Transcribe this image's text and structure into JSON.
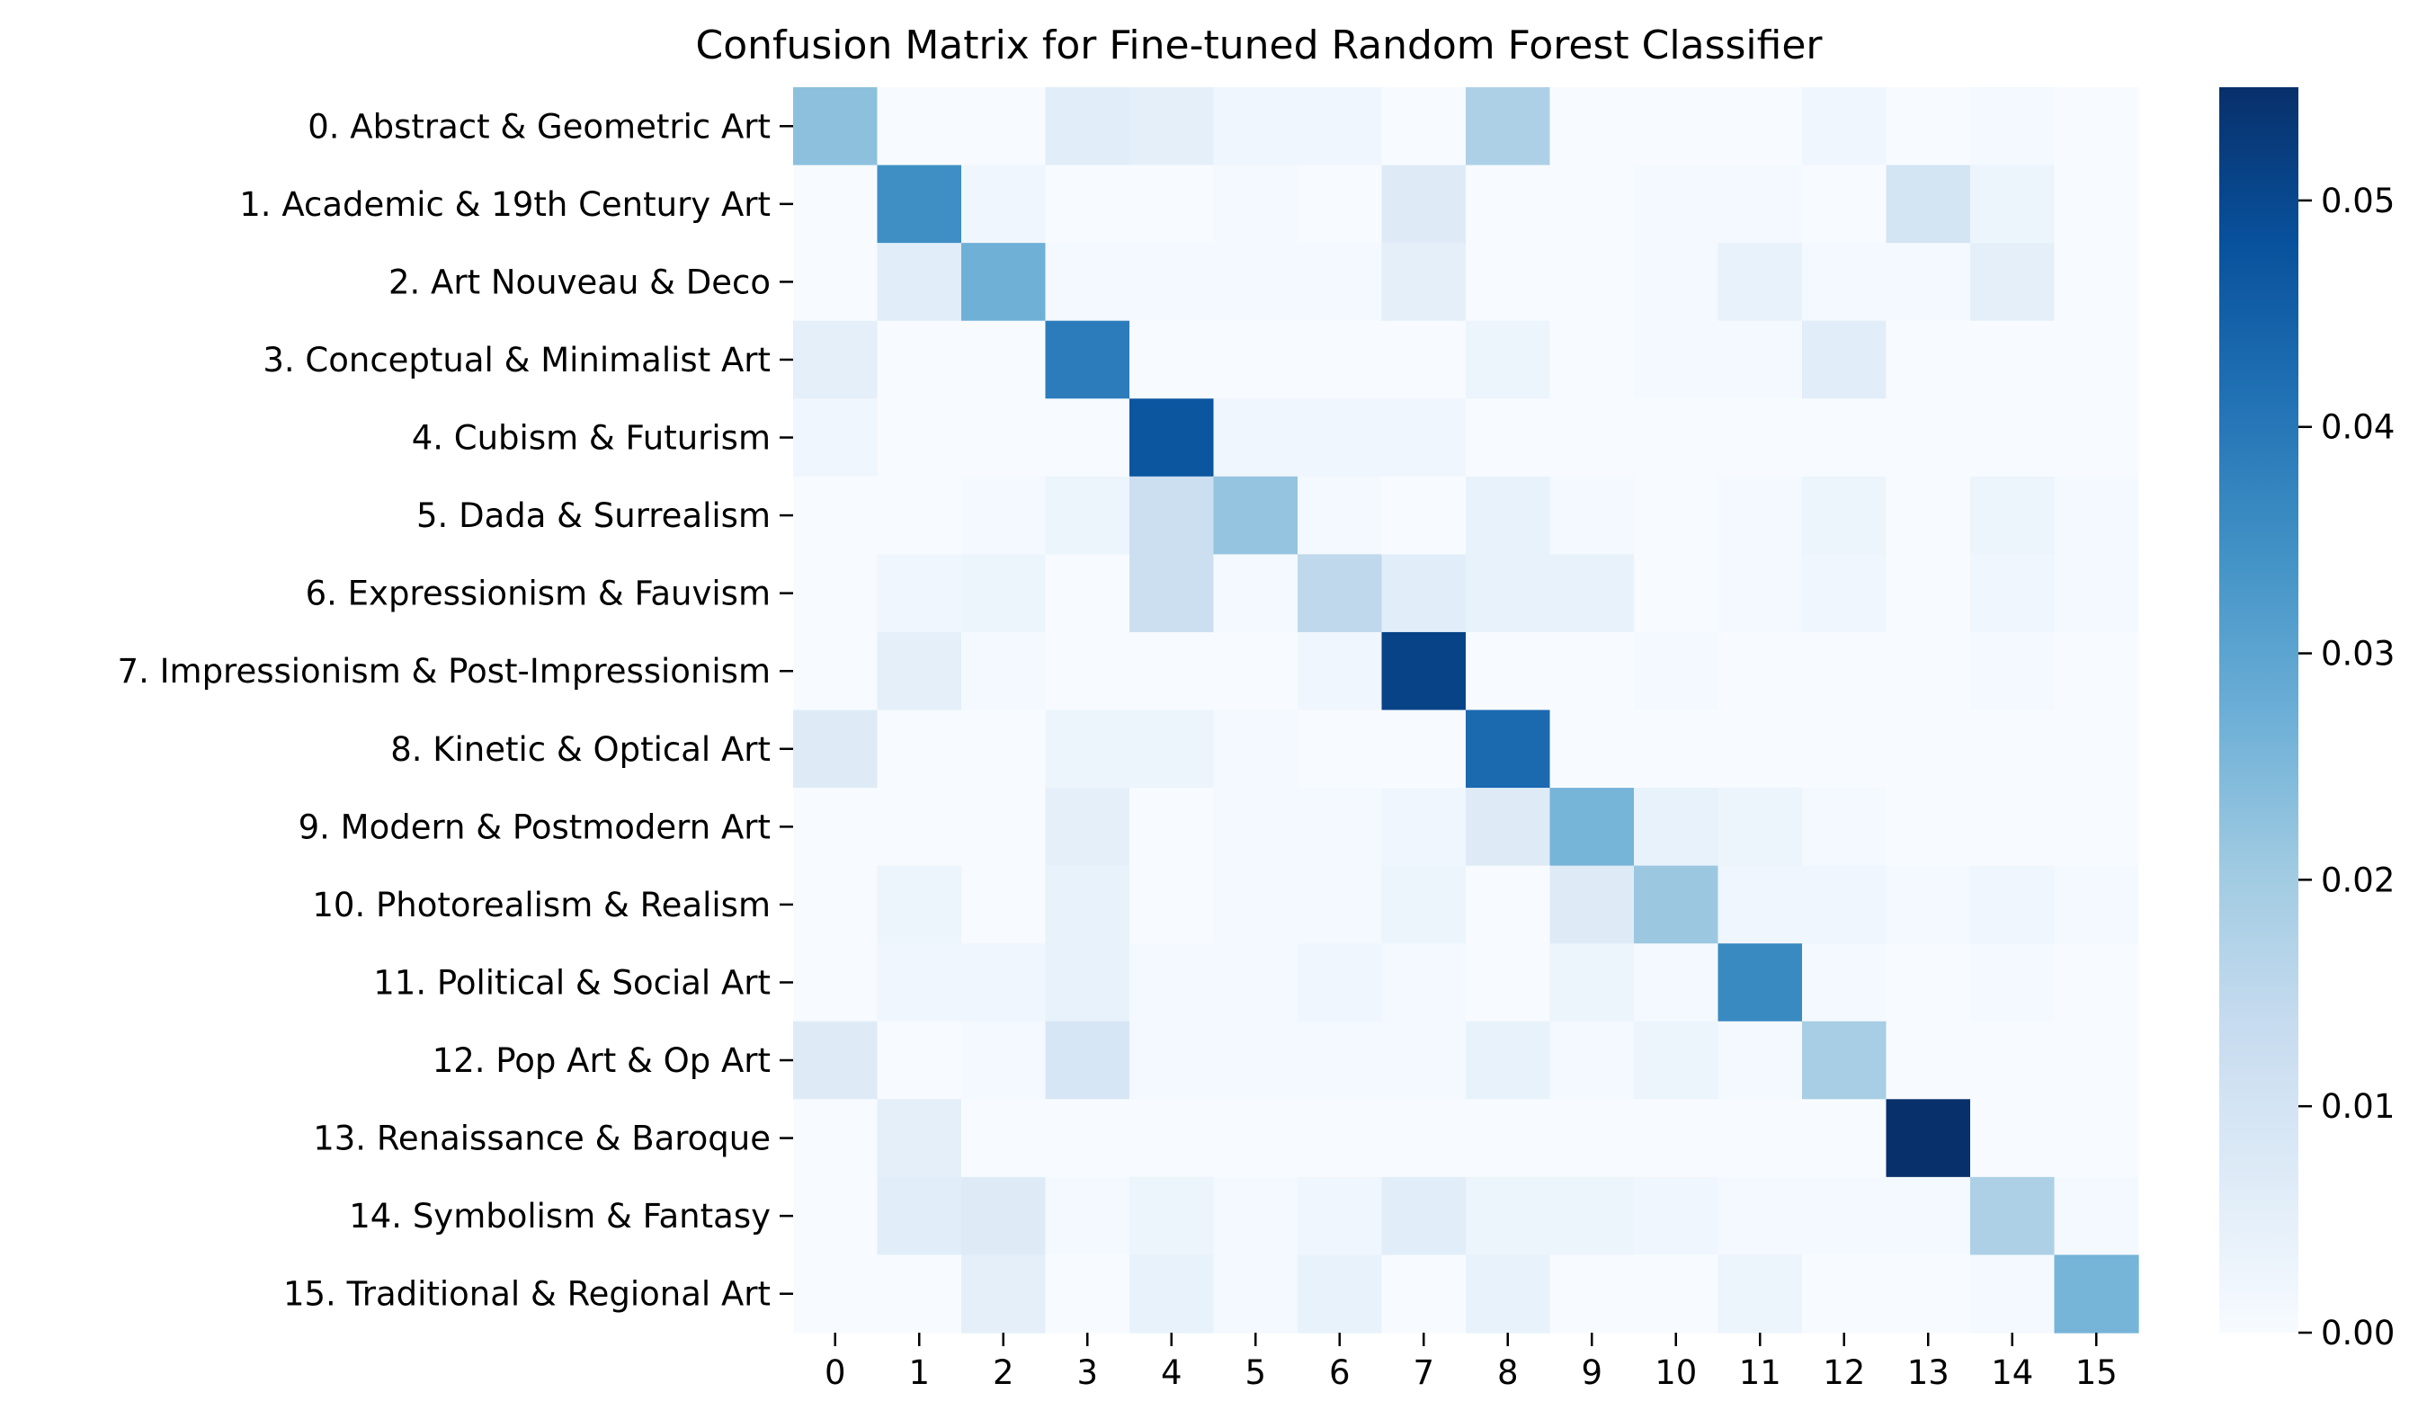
{
  "chart_data": {
    "type": "heatmap",
    "title": "Confusion Matrix for Fine-tuned Random Forest Classifier",
    "xlabel": "",
    "ylabel": "",
    "x_tick_labels": [
      "0",
      "1",
      "2",
      "3",
      "4",
      "5",
      "6",
      "7",
      "8",
      "9",
      "10",
      "11",
      "12",
      "13",
      "14",
      "15"
    ],
    "y_tick_labels": [
      "0. Abstract & Geometric Art",
      "1. Academic & 19th Century Art",
      "2. Art Nouveau & Deco",
      "3. Conceptual & Minimalist Art",
      "4. Cubism & Futurism",
      "5. Dada & Surrealism",
      "6. Expressionism & Fauvism",
      "7. Impressionism & Post-Impressionism",
      "8. Kinetic & Optical Art",
      "9. Modern & Postmodern Art",
      "10. Photorealism & Realism",
      "11. Political & Social Art",
      "12. Pop Art & Op Art",
      "13. Renaissance & Baroque",
      "14. Symbolism & Fantasy",
      "15. Traditional & Regional Art"
    ],
    "colormap": "Blues",
    "vmin": 0,
    "vmax": 0.055,
    "colorbar_ticks": [
      0,
      0.01,
      0.02,
      0.03,
      0.04,
      0.05
    ],
    "colorbar_tick_labels": [
      "0.00",
      "0.01",
      "0.02",
      "0.03",
      "0.04",
      "0.05"
    ],
    "values": [
      [
        0.023,
        0.0,
        0.0,
        0.006,
        0.005,
        0.002,
        0.002,
        0.0,
        0.018,
        0.0,
        0.0,
        0.0,
        0.002,
        0.0,
        0.001,
        0.0
      ],
      [
        0.0,
        0.035,
        0.002,
        0.0,
        0.0,
        0.001,
        0.0,
        0.007,
        0.0,
        0.0,
        0.001,
        0.001,
        0.0,
        0.01,
        0.003,
        0.0
      ],
      [
        0.0,
        0.006,
        0.027,
        0.001,
        0.001,
        0.001,
        0.001,
        0.005,
        0.0,
        0.0,
        0.001,
        0.004,
        0.001,
        0.001,
        0.005,
        0.0
      ],
      [
        0.005,
        0.0,
        0.0,
        0.039,
        0.0,
        0.0,
        0.0,
        0.0,
        0.003,
        0.0,
        0.001,
        0.001,
        0.006,
        0.0,
        0.0,
        0.0
      ],
      [
        0.002,
        0.0,
        0.0,
        0.0,
        0.047,
        0.002,
        0.002,
        0.002,
        0.0,
        0.0,
        0.0,
        0.0,
        0.0,
        0.0,
        0.0,
        0.0
      ],
      [
        0.0,
        0.0,
        0.001,
        0.003,
        0.012,
        0.022,
        0.001,
        0.0,
        0.004,
        0.001,
        0.0,
        0.001,
        0.003,
        0.0,
        0.003,
        0.001
      ],
      [
        0.0,
        0.002,
        0.003,
        0.0,
        0.012,
        0.001,
        0.015,
        0.006,
        0.004,
        0.004,
        0.0,
        0.001,
        0.002,
        0.0,
        0.002,
        0.001
      ],
      [
        0.0,
        0.005,
        0.001,
        0.0,
        0.0,
        0.0,
        0.002,
        0.051,
        0.0,
        0.0,
        0.001,
        0.0,
        0.0,
        0.0,
        0.001,
        0.0
      ],
      [
        0.007,
        0.0,
        0.0,
        0.003,
        0.003,
        0.001,
        0.0,
        0.0,
        0.043,
        0.0,
        0.0,
        0.0,
        0.0,
        0.0,
        0.0,
        0.0
      ],
      [
        0.0,
        0.0,
        0.0,
        0.005,
        0.0,
        0.001,
        0.001,
        0.002,
        0.007,
        0.026,
        0.004,
        0.003,
        0.001,
        0.0,
        0.0,
        0.0
      ],
      [
        0.0,
        0.003,
        0.0,
        0.004,
        0.0,
        0.001,
        0.001,
        0.003,
        0.0,
        0.007,
        0.021,
        0.002,
        0.002,
        0.001,
        0.002,
        0.001
      ],
      [
        0.0,
        0.002,
        0.002,
        0.004,
        0.001,
        0.001,
        0.002,
        0.001,
        0.0,
        0.003,
        0.001,
        0.036,
        0.001,
        0.0,
        0.001,
        0.0
      ],
      [
        0.007,
        0.0,
        0.001,
        0.009,
        0.001,
        0.001,
        0.001,
        0.001,
        0.004,
        0.001,
        0.003,
        0.001,
        0.019,
        0.0,
        0.0,
        0.0
      ],
      [
        0.0,
        0.005,
        0.0,
        0.0,
        0.0,
        0.0,
        0.0,
        0.0,
        0.0,
        0.0,
        0.0,
        0.0,
        0.0,
        0.055,
        0.0,
        0.0
      ],
      [
        0.0,
        0.006,
        0.007,
        0.001,
        0.003,
        0.001,
        0.002,
        0.006,
        0.003,
        0.003,
        0.002,
        0.001,
        0.001,
        0.001,
        0.018,
        0.001
      ],
      [
        0.0,
        0.0,
        0.005,
        0.0,
        0.004,
        0.001,
        0.004,
        0.0,
        0.004,
        0.0,
        0.0,
        0.003,
        0.0,
        0.0,
        0.001,
        0.026
      ]
    ]
  }
}
